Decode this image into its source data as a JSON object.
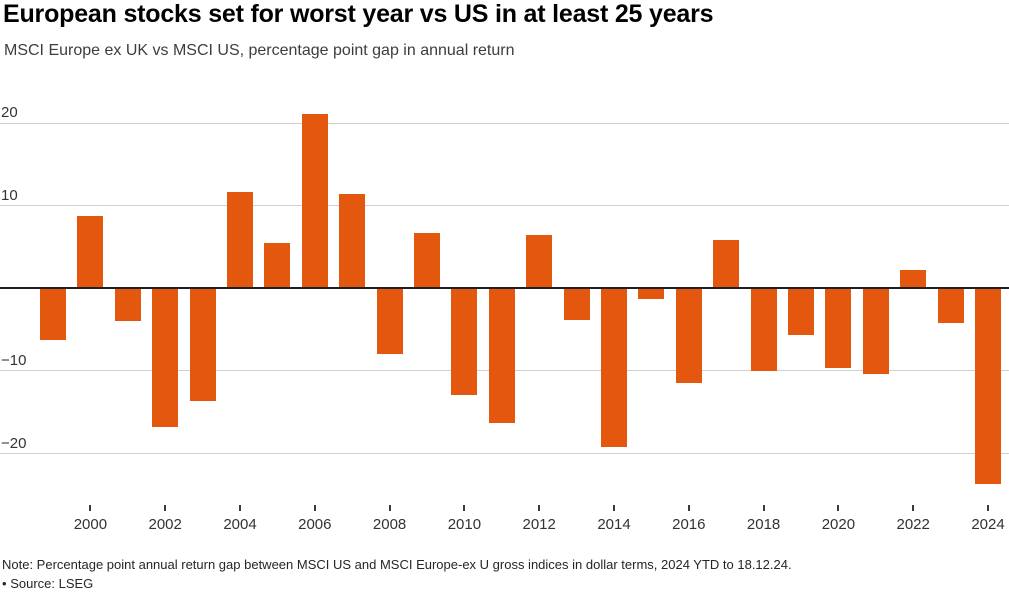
{
  "header": {
    "title": "European stocks set for worst year vs US in at least 25 years",
    "subtitle": "MSCI Europe ex UK vs MSCI US, percentage point gap in annual return"
  },
  "chart_data": {
    "type": "bar",
    "title": "European stocks set for worst year vs US in at least 25 years",
    "subtitle": "MSCI Europe ex UK vs MSCI US, percentage point gap in annual return",
    "xlabel": "",
    "ylabel": "",
    "categories": [
      1999,
      2000,
      2001,
      2002,
      2003,
      2004,
      2005,
      2006,
      2007,
      2008,
      2009,
      2010,
      2011,
      2012,
      2013,
      2014,
      2015,
      2016,
      2017,
      2018,
      2019,
      2020,
      2021,
      2022,
      2023,
      2024
    ],
    "values": [
      -6.3,
      8.8,
      -4.0,
      -16.8,
      -13.6,
      11.7,
      5.5,
      21.1,
      11.4,
      -8.0,
      6.7,
      -12.9,
      -16.3,
      6.4,
      -3.8,
      -19.2,
      -1.3,
      -11.5,
      5.8,
      -10.0,
      -5.7,
      -9.7,
      -10.4,
      2.2,
      -4.2,
      -23.7
    ],
    "ylim": [
      -25,
      22
    ],
    "yticks": [
      {
        "value": 20,
        "label": "20"
      },
      {
        "value": 10,
        "label": "10"
      },
      {
        "value": -10,
        "label": "−10"
      },
      {
        "value": -20,
        "label": "−20"
      }
    ],
    "xticks": [
      {
        "year": 2000,
        "label": "2000"
      },
      {
        "year": 2002,
        "label": "2002"
      },
      {
        "year": 2004,
        "label": "2004"
      },
      {
        "year": 2006,
        "label": "2006"
      },
      {
        "year": 2008,
        "label": "2008"
      },
      {
        "year": 2010,
        "label": "2010"
      },
      {
        "year": 2012,
        "label": "2012"
      },
      {
        "year": 2014,
        "label": "2014"
      },
      {
        "year": 2016,
        "label": "2016"
      },
      {
        "year": 2018,
        "label": "2018"
      },
      {
        "year": 2020,
        "label": "2020"
      },
      {
        "year": 2022,
        "label": "2022"
      },
      {
        "year": 2024,
        "label": "2024"
      }
    ],
    "grid": "horizontal-light",
    "zero_line": true,
    "legend": "none",
    "bar_color": "#e4570e"
  },
  "colors": {
    "bar": "#e4570e",
    "gridline": "#cfcfcf",
    "zero_line": "#1f1f1f"
  },
  "footer": {
    "note": "Note: Percentage point annual return gap between MSCI US and MSCI Europe-ex U gross indices in dollar terms, 2024 YTD to 18.12.24.",
    "bullet": "•",
    "source": "Source: LSEG"
  }
}
